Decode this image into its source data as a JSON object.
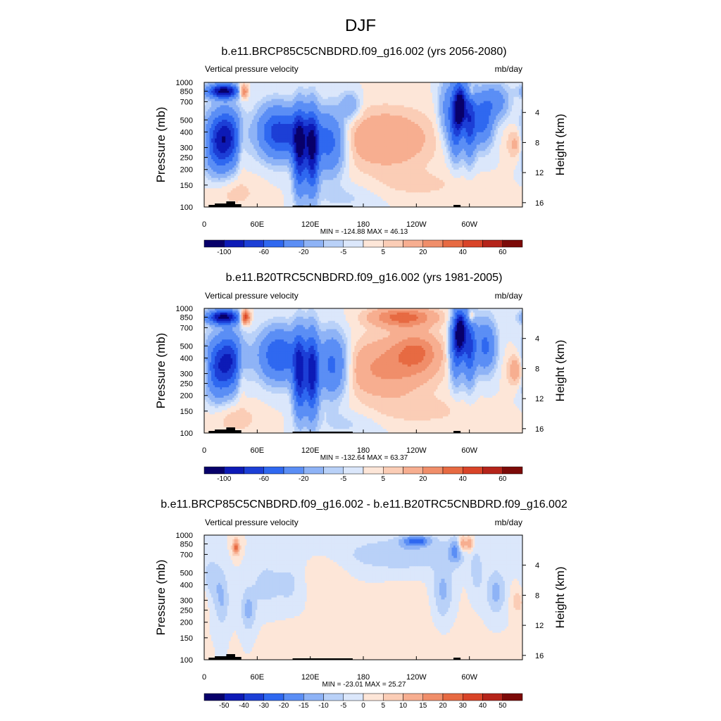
{
  "figure": {
    "title": "DJF"
  },
  "colors": {
    "scale": [
      "#08006a",
      "#0d1ab6",
      "#1c3fd6",
      "#2f68f0",
      "#5b8ef5",
      "#8eb3f6",
      "#b9d1f8",
      "#dbe7fb",
      "#fde6d8",
      "#fbcdb6",
      "#f7ae90",
      "#f08e6a",
      "#e76a42",
      "#d94428",
      "#b5241a",
      "#7c0a08"
    ]
  },
  "chart_data": [
    {
      "type": "heatmap",
      "title": "b.e11.BRCP85C5CNBDRD.f09_g16.002 (yrs 2056-2080)",
      "left_label": "Vertical pressure velocity",
      "right_label": "mb/day",
      "ylabel": "Pressure (mb)",
      "ylabel_right": "Height (km)",
      "y_ticks": [
        "100",
        "150",
        "200",
        "250",
        "300",
        "400",
        "500",
        "700",
        "850",
        "1000"
      ],
      "y_tick_values": [
        100,
        150,
        200,
        250,
        300,
        400,
        500,
        700,
        850,
        1000
      ],
      "y_right_ticks": [
        "4",
        "8",
        "12",
        "16"
      ],
      "x_ticks": [
        "0",
        "60E",
        "120E",
        "180",
        "120W",
        "60W"
      ],
      "x_tick_values": [
        0,
        60,
        120,
        180,
        240,
        300
      ],
      "xlim": [
        0,
        360
      ],
      "ylim": [
        1000,
        100
      ],
      "stats": "MIN = -124.88  MAX =  46.13",
      "colorbar_labels": [
        "-100",
        "-60",
        "-20",
        "-5",
        "5",
        "20",
        "40",
        "60"
      ],
      "colorbar_levels": [
        -120,
        -100,
        -80,
        -60,
        -40,
        -20,
        -10,
        -5,
        0,
        5,
        10,
        20,
        30,
        40,
        50,
        60
      ],
      "features": [
        {
          "lon": 14,
          "p": 330,
          "v": -60,
          "w": 10,
          "h": 0.5
        },
        {
          "lon": 28,
          "p": 360,
          "v": -70,
          "w": 10,
          "h": 0.48
        },
        {
          "lon": 22,
          "p": 850,
          "v": -110,
          "w": 12,
          "h": 0.12
        },
        {
          "lon": 44,
          "p": 850,
          "v": 45,
          "w": 4,
          "h": 0.12
        },
        {
          "lon": 42,
          "p": 320,
          "v": 15,
          "w": 4,
          "h": 0.45
        },
        {
          "lon": 80,
          "p": 400,
          "v": -55,
          "w": 14,
          "h": 0.45
        },
        {
          "lon": 105,
          "p": 380,
          "v": -45,
          "w": 16,
          "h": 0.4
        },
        {
          "lon": 108,
          "p": 280,
          "v": -85,
          "w": 5,
          "h": 0.7
        },
        {
          "lon": 122,
          "p": 280,
          "v": -90,
          "w": 5,
          "h": 0.7
        },
        {
          "lon": 142,
          "p": 330,
          "v": -50,
          "w": 12,
          "h": 0.55
        },
        {
          "lon": 165,
          "p": 650,
          "v": -20,
          "w": 8,
          "h": 0.25
        },
        {
          "lon": 205,
          "p": 350,
          "v": 20,
          "w": 38,
          "h": 0.55
        },
        {
          "lon": 245,
          "p": 150,
          "v": 6,
          "w": 40,
          "h": 0.25
        },
        {
          "lon": 275,
          "p": 600,
          "v": -25,
          "w": 7,
          "h": 0.6
        },
        {
          "lon": 285,
          "p": 500,
          "v": -70,
          "w": 5,
          "h": 0.6
        },
        {
          "lon": 290,
          "p": 650,
          "v": -100,
          "w": 4,
          "h": 0.35
        },
        {
          "lon": 300,
          "p": 500,
          "v": -70,
          "w": 5,
          "h": 0.6
        },
        {
          "lon": 302,
          "p": 850,
          "v": 25,
          "w": 2.5,
          "h": 0.15
        },
        {
          "lon": 315,
          "p": 500,
          "v": -50,
          "w": 8,
          "h": 0.45
        },
        {
          "lon": 330,
          "p": 700,
          "v": -30,
          "w": 10,
          "h": 0.3
        },
        {
          "lon": 355,
          "p": 320,
          "v": 18,
          "w": 8,
          "h": 0.3
        },
        {
          "lon": 35,
          "p": 130,
          "v": 7,
          "w": 20,
          "h": 0.3
        },
        {
          "lon": 160,
          "p": 120,
          "v": -6,
          "w": 25,
          "h": 0.25
        }
      ]
    },
    {
      "type": "heatmap",
      "title": "b.e11.B20TRC5CNBDRD.f09_g16.002 (yrs 1981-2005)",
      "left_label": "Vertical pressure velocity",
      "right_label": "mb/day",
      "ylabel": "Pressure (mb)",
      "ylabel_right": "Height (km)",
      "y_ticks": [
        "100",
        "150",
        "200",
        "250",
        "300",
        "400",
        "500",
        "700",
        "850",
        "1000"
      ],
      "y_tick_values": [
        100,
        150,
        200,
        250,
        300,
        400,
        500,
        700,
        850,
        1000
      ],
      "y_right_ticks": [
        "4",
        "8",
        "12",
        "16"
      ],
      "x_ticks": [
        "0",
        "60E",
        "120E",
        "180",
        "120W",
        "60W"
      ],
      "x_tick_values": [
        0,
        60,
        120,
        180,
        240,
        300
      ],
      "xlim": [
        0,
        360
      ],
      "ylim": [
        1000,
        100
      ],
      "stats": "MIN = -132.64  MAX =  63.37",
      "colorbar_labels": [
        "-100",
        "-60",
        "-20",
        "-5",
        "5",
        "20",
        "40",
        "60"
      ],
      "colorbar_levels": [
        -120,
        -100,
        -80,
        -60,
        -40,
        -20,
        -10,
        -5,
        0,
        5,
        10,
        20,
        30,
        40,
        50,
        60
      ],
      "features": [
        {
          "lon": 14,
          "p": 330,
          "v": -55,
          "w": 10,
          "h": 0.5
        },
        {
          "lon": 30,
          "p": 380,
          "v": -70,
          "w": 10,
          "h": 0.48
        },
        {
          "lon": 22,
          "p": 850,
          "v": -110,
          "w": 12,
          "h": 0.12
        },
        {
          "lon": 46,
          "p": 850,
          "v": 60,
          "w": 4,
          "h": 0.12
        },
        {
          "lon": 42,
          "p": 330,
          "v": 18,
          "w": 4,
          "h": 0.45
        },
        {
          "lon": 85,
          "p": 420,
          "v": -60,
          "w": 16,
          "h": 0.45
        },
        {
          "lon": 108,
          "p": 300,
          "v": -85,
          "w": 5,
          "h": 0.7
        },
        {
          "lon": 122,
          "p": 300,
          "v": -90,
          "w": 5,
          "h": 0.7
        },
        {
          "lon": 145,
          "p": 350,
          "v": -50,
          "w": 12,
          "h": 0.55
        },
        {
          "lon": 205,
          "p": 330,
          "v": 22,
          "w": 38,
          "h": 0.55
        },
        {
          "lon": 240,
          "p": 450,
          "v": 25,
          "w": 18,
          "h": 0.35
        },
        {
          "lon": 225,
          "p": 850,
          "v": 35,
          "w": 25,
          "h": 0.18
        },
        {
          "lon": 245,
          "p": 150,
          "v": 7,
          "w": 40,
          "h": 0.25
        },
        {
          "lon": 285,
          "p": 500,
          "v": -60,
          "w": 5,
          "h": 0.6
        },
        {
          "lon": 290,
          "p": 650,
          "v": -110,
          "w": 4,
          "h": 0.35
        },
        {
          "lon": 300,
          "p": 500,
          "v": -65,
          "w": 5,
          "h": 0.6
        },
        {
          "lon": 302,
          "p": 850,
          "v": 30,
          "w": 2.5,
          "h": 0.15
        },
        {
          "lon": 318,
          "p": 500,
          "v": -45,
          "w": 8,
          "h": 0.45
        },
        {
          "lon": 355,
          "p": 320,
          "v": 22,
          "w": 8,
          "h": 0.3
        },
        {
          "lon": 35,
          "p": 130,
          "v": 8,
          "w": 20,
          "h": 0.3
        },
        {
          "lon": 160,
          "p": 120,
          "v": -6,
          "w": 25,
          "h": 0.25
        }
      ]
    },
    {
      "type": "heatmap",
      "title": "b.e11.BRCP85C5CNBDRD.f09_g16.002 - b.e11.B20TRC5CNBDRD.f09_g16.002",
      "left_label": "Vertical pressure velocity",
      "right_label": "mb/day",
      "ylabel": "Pressure (mb)",
      "ylabel_right": "Height (km)",
      "y_ticks": [
        "100",
        "150",
        "200",
        "250",
        "300",
        "400",
        "500",
        "700",
        "850",
        "1000"
      ],
      "y_tick_values": [
        100,
        150,
        200,
        250,
        300,
        400,
        500,
        700,
        850,
        1000
      ],
      "y_right_ticks": [
        "4",
        "8",
        "12",
        "16"
      ],
      "x_ticks": [
        "0",
        "60E",
        "120E",
        "180",
        "120W",
        "60W"
      ],
      "x_tick_values": [
        0,
        60,
        120,
        180,
        240,
        300
      ],
      "xlim": [
        0,
        360
      ],
      "ylim": [
        1000,
        100
      ],
      "stats": "MIN = -23.01  MAX =  25.27",
      "colorbar_labels": [
        "-50",
        "-40",
        "-30",
        "-20",
        "-15",
        "-10",
        "-5",
        "0",
        "5",
        "10",
        "15",
        "20",
        "30",
        "40",
        "50"
      ],
      "colorbar_levels": [
        -60,
        -50,
        -40,
        -30,
        -20,
        -15,
        -10,
        -5,
        0,
        5,
        10,
        15,
        20,
        30,
        40,
        50
      ],
      "features": [
        {
          "lon": 8,
          "p": 450,
          "v": -8,
          "w": 8,
          "h": 0.4
        },
        {
          "lon": 20,
          "p": 300,
          "v": -10,
          "w": 6,
          "h": 0.5
        },
        {
          "lon": 36,
          "p": 800,
          "v": 22,
          "w": 3,
          "h": 0.15
        },
        {
          "lon": 50,
          "p": 250,
          "v": -12,
          "w": 6,
          "h": 0.4
        },
        {
          "lon": 70,
          "p": 400,
          "v": -8,
          "w": 10,
          "h": 0.4
        },
        {
          "lon": 95,
          "p": 400,
          "v": -7,
          "w": 10,
          "h": 0.35
        },
        {
          "lon": 140,
          "p": 450,
          "v": 4,
          "w": 15,
          "h": 0.45
        },
        {
          "lon": 220,
          "p": 700,
          "v": -10,
          "w": 45,
          "h": 0.3
        },
        {
          "lon": 240,
          "p": 900,
          "v": -20,
          "w": 12,
          "h": 0.1
        },
        {
          "lon": 270,
          "p": 350,
          "v": -12,
          "w": 8,
          "h": 0.55
        },
        {
          "lon": 285,
          "p": 750,
          "v": -14,
          "w": 6,
          "h": 0.25
        },
        {
          "lon": 292,
          "p": 850,
          "v": 20,
          "w": 3,
          "h": 0.15
        },
        {
          "lon": 300,
          "p": 850,
          "v": 15,
          "w": 3,
          "h": 0.15
        },
        {
          "lon": 308,
          "p": 500,
          "v": -8,
          "w": 5,
          "h": 0.4
        },
        {
          "lon": 330,
          "p": 350,
          "v": -12,
          "w": 8,
          "h": 0.4
        },
        {
          "lon": 355,
          "p": 300,
          "v": 8,
          "w": 6,
          "h": 0.3
        },
        {
          "lon": 230,
          "p": 250,
          "v": 2,
          "w": 40,
          "h": 0.5
        },
        {
          "lon": 180,
          "p": 150,
          "v": 2,
          "w": 80,
          "h": 0.3
        }
      ]
    }
  ]
}
